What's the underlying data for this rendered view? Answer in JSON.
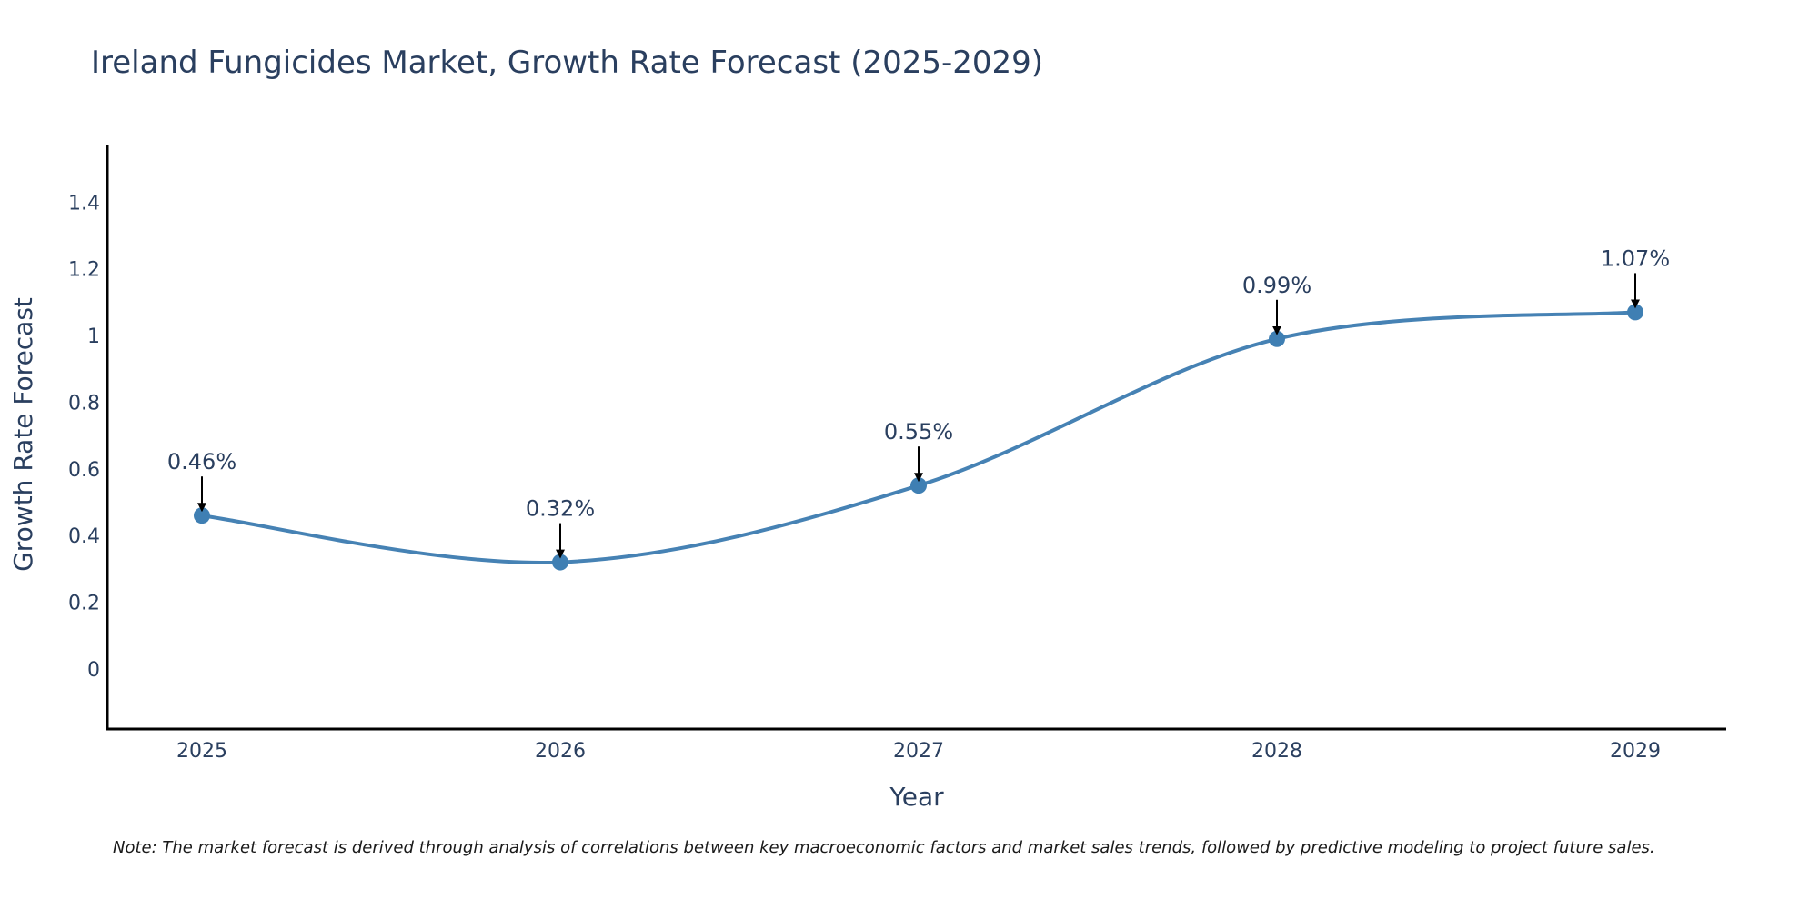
{
  "chart_data": {
    "type": "line",
    "title": "Ireland Fungicides Market, Growth Rate Forecast (2025-2029)",
    "xlabel": "Year",
    "ylabel": "Growth Rate Forecast",
    "categories": [
      "2025",
      "2026",
      "2027",
      "2028",
      "2029"
    ],
    "series": [
      {
        "name": "Growth Rate Forecast",
        "values": [
          0.46,
          0.32,
          0.55,
          0.99,
          1.07
        ],
        "labels": [
          "0.46%",
          "0.32%",
          "0.55%",
          "0.99%",
          "1.07%"
        ]
      }
    ],
    "ylim": [
      -0.18,
      1.57
    ],
    "yticks": [
      0,
      0.2,
      0.4,
      0.6,
      0.8,
      1,
      1.2,
      1.4
    ],
    "ytick_labels": [
      "0",
      "0.2",
      "0.4",
      "0.6",
      "0.8",
      "1",
      "1.2",
      "1.4"
    ],
    "grid": false,
    "line_color": "#4682b4",
    "marker_color": "#3f7fb3",
    "arrow_color": "#000000",
    "note": "Note: The market forecast is derived through analysis of correlations between key macroeconomic factors and market sales trends, followed by predictive modeling to project future sales."
  }
}
